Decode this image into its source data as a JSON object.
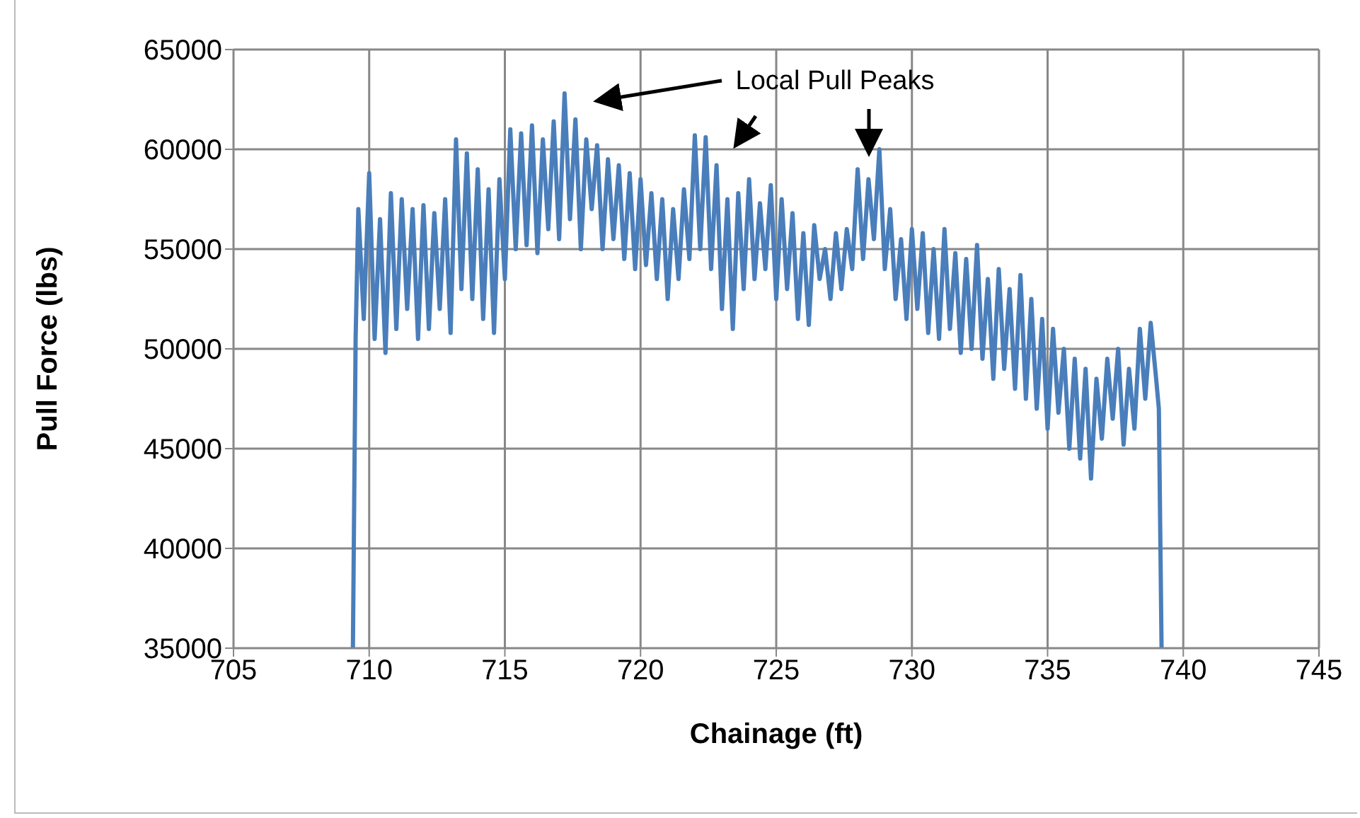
{
  "chart_data": {
    "type": "line",
    "xlabel": "Chainage (ft)",
    "ylabel": "Pull Force (lbs)",
    "annotations": [
      "Local Pull Peaks"
    ],
    "xlim": [
      705,
      745
    ],
    "xticks": [
      705,
      710,
      715,
      720,
      725,
      730,
      735,
      740,
      745
    ],
    "ylim": [
      35000,
      65000
    ],
    "yticks": [
      35000,
      40000,
      45000,
      50000,
      55000,
      60000,
      65000
    ],
    "grid": true,
    "series": [
      {
        "color": "#4a7ebb",
        "x": [
          709.4,
          709.5,
          709.6,
          709.8,
          710.0,
          710.2,
          710.4,
          710.6,
          710.8,
          711.0,
          711.2,
          711.4,
          711.6,
          711.8,
          712.0,
          712.2,
          712.4,
          712.6,
          712.8,
          713.0,
          713.2,
          713.4,
          713.6,
          713.8,
          714.0,
          714.2,
          714.4,
          714.6,
          714.8,
          715.0,
          715.2,
          715.4,
          715.6,
          715.8,
          716.0,
          716.2,
          716.4,
          716.6,
          716.8,
          717.0,
          717.2,
          717.4,
          717.6,
          717.8,
          718.0,
          718.2,
          718.4,
          718.6,
          718.8,
          719.0,
          719.2,
          719.4,
          719.6,
          719.8,
          720.0,
          720.2,
          720.4,
          720.6,
          720.8,
          721.0,
          721.2,
          721.4,
          721.6,
          721.8,
          722.0,
          722.2,
          722.4,
          722.6,
          722.8,
          723.0,
          723.2,
          723.4,
          723.6,
          723.8,
          724.0,
          724.2,
          724.4,
          724.6,
          724.8,
          725.0,
          725.2,
          725.4,
          725.6,
          725.8,
          726.0,
          726.2,
          726.4,
          726.6,
          726.8,
          727.0,
          727.2,
          727.4,
          727.6,
          727.8,
          728.0,
          728.2,
          728.4,
          728.6,
          728.8,
          729.0,
          729.2,
          729.4,
          729.6,
          729.8,
          730.0,
          730.2,
          730.4,
          730.6,
          730.8,
          731.0,
          731.2,
          731.4,
          731.6,
          731.8,
          732.0,
          732.2,
          732.4,
          732.6,
          732.8,
          733.0,
          733.2,
          733.4,
          733.6,
          733.8,
          734.0,
          734.2,
          734.4,
          734.6,
          734.8,
          735.0,
          735.2,
          735.4,
          735.6,
          735.8,
          736.0,
          736.2,
          736.4,
          736.6,
          736.8,
          737.0,
          737.2,
          737.4,
          737.6,
          737.8,
          738.0,
          738.2,
          738.4,
          738.6,
          738.8,
          739.0,
          739.1,
          739.2
        ],
        "values": [
          35000,
          50500,
          57000,
          51500,
          58800,
          50500,
          56500,
          49800,
          57800,
          51000,
          57500,
          52000,
          57000,
          50500,
          57200,
          51000,
          56800,
          52000,
          57500,
          50800,
          60500,
          53000,
          59800,
          52500,
          59000,
          51500,
          58000,
          50800,
          58500,
          53500,
          61000,
          55000,
          60800,
          55200,
          61200,
          54800,
          60500,
          56000,
          61400,
          55500,
          62800,
          56500,
          61500,
          55000,
          60500,
          57000,
          60200,
          55000,
          59500,
          55500,
          59200,
          54500,
          58800,
          54000,
          58500,
          54200,
          57800,
          53500,
          57500,
          52500,
          57000,
          53500,
          58000,
          54500,
          60700,
          55000,
          60600,
          54000,
          59200,
          52000,
          57500,
          51000,
          57800,
          53000,
          58500,
          53500,
          57300,
          54000,
          58200,
          52500,
          57500,
          53000,
          56800,
          51500,
          55800,
          51200,
          56200,
          53500,
          55000,
          52500,
          55800,
          53000,
          56000,
          54000,
          59000,
          54500,
          58500,
          55500,
          60000,
          54000,
          57000,
          52500,
          55500,
          51500,
          56000,
          52000,
          55800,
          50800,
          55000,
          50500,
          56000,
          51000,
          54800,
          49800,
          54500,
          50000,
          55200,
          49500,
          53500,
          48500,
          54000,
          49000,
          53000,
          48000,
          53700,
          47500,
          52500,
          47000,
          51500,
          46000,
          51000,
          46800,
          50000,
          45000,
          49500,
          44500,
          49000,
          43500,
          48500,
          45500,
          49500,
          46500,
          50000,
          45200,
          49000,
          46000,
          51000,
          47500,
          51300,
          48500,
          47000,
          35000
        ]
      }
    ]
  }
}
